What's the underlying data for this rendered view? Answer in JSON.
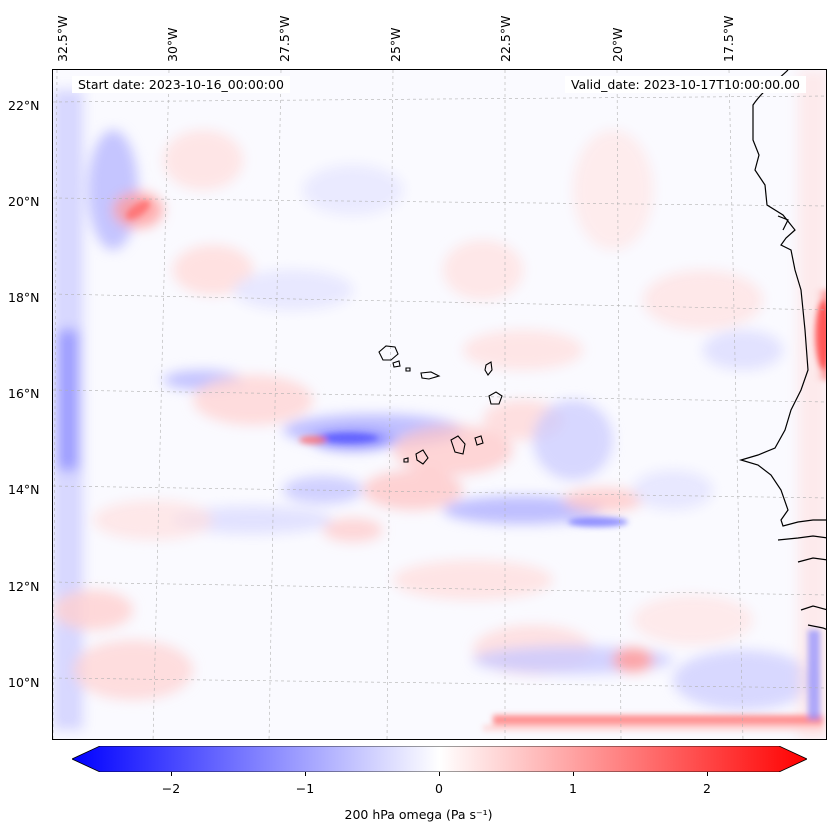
{
  "header": {
    "start_date": "Start date: 2023-10-16_00:00:00",
    "valid_date": "Valid_date: 2023-10-17T10:00:00.00"
  },
  "axes": {
    "lon_labels": [
      "32.5°W",
      "30°W",
      "27.5°W",
      "25°W",
      "22.5°W",
      "20°W",
      "17.5°W"
    ],
    "lat_labels": [
      "22°N",
      "20°N",
      "18°N",
      "16°N",
      "14°N",
      "12°N",
      "10°N"
    ]
  },
  "colorbar": {
    "ticks": [
      "−2",
      "−1",
      "0",
      "1",
      "2"
    ],
    "label": "200 hPa omega (Pa s⁻¹)",
    "range": [
      -2.7,
      2.7
    ],
    "cmap": "bwr",
    "low_color": "#0000ff",
    "mid_color": "#ffffff",
    "high_color": "#ff0000"
  },
  "colors": {
    "coastline": "#000000",
    "gridline": "#b0b0b0"
  }
}
